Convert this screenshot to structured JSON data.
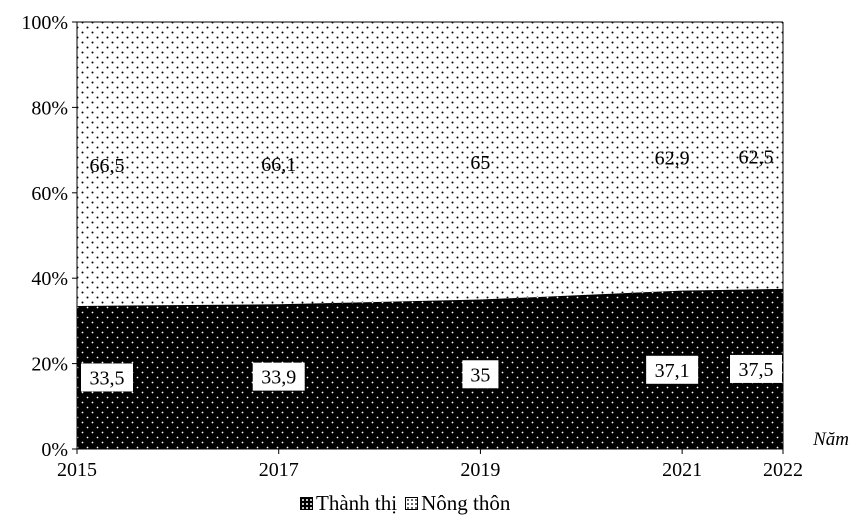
{
  "chart_data": {
    "type": "area",
    "stacked": true,
    "x": [
      "2015",
      "2017",
      "2019",
      "2021",
      "2022"
    ],
    "x_numeric": [
      2015,
      2017,
      2019,
      2021,
      2022
    ],
    "series": [
      {
        "name": "Thành thị",
        "values": [
          33.5,
          33.9,
          35,
          37.1,
          37.5
        ],
        "labels": [
          "33,5",
          "33,9",
          "35",
          "37,1",
          "37,5"
        ],
        "color": "#000000",
        "pattern": "white-dots-on-black"
      },
      {
        "name": "Nông thôn",
        "values": [
          66.5,
          66.1,
          65,
          62.9,
          62.5
        ],
        "labels": [
          "66,5",
          "66,1",
          "65",
          "62,9",
          "62,5"
        ],
        "color": "#ffffff",
        "pattern": "black-dots-on-white"
      }
    ],
    "yticks": [
      "0%",
      "20%",
      "40%",
      "60%",
      "80%",
      "100%"
    ],
    "ylim": [
      0,
      100
    ],
    "xlabel": "Năm",
    "grid": false,
    "legend_position": "bottom"
  },
  "legend": {
    "urban": "Thành thị",
    "rural": "Nông thôn"
  }
}
